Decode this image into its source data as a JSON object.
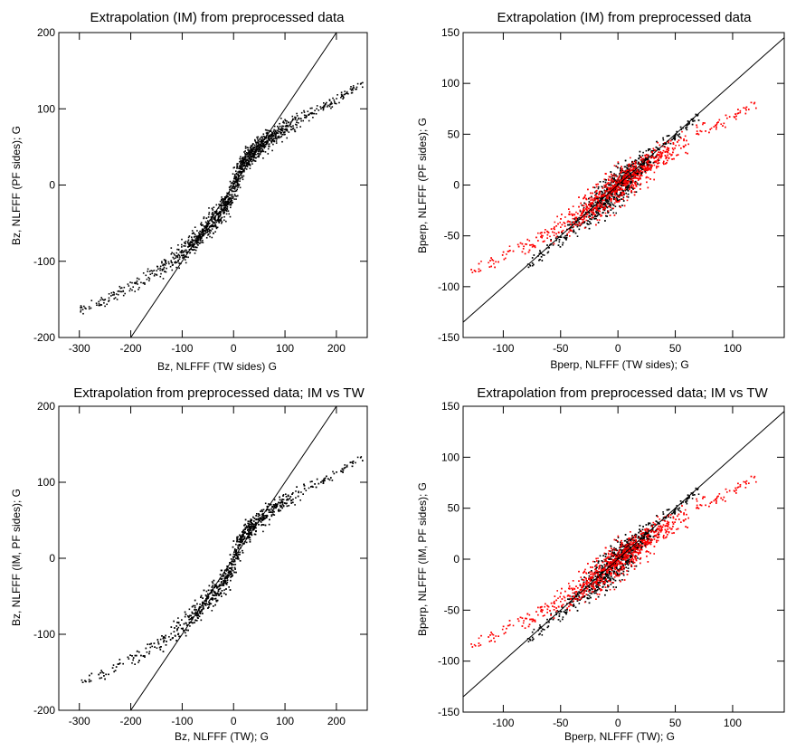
{
  "chart_data": [
    {
      "type": "scatter",
      "title": "Extrapolation (IM) from preprocessed data",
      "xlabel": "Bz, NLFFF (TW sides)  G",
      "ylabel": "Bz, NLFFF (PF sides); G",
      "xlim": [
        -340,
        260
      ],
      "ylim": [
        -200,
        200
      ],
      "xticks": [
        -300,
        -200,
        -100,
        0,
        100,
        200
      ],
      "yticks": [
        -200,
        -100,
        0,
        100,
        200
      ],
      "grid": false,
      "reference_line": {
        "x": [
          -200,
          200
        ],
        "y": [
          -200,
          200
        ]
      },
      "series": [
        {
          "color": "#000000",
          "x": [
            -300,
            -250,
            -200,
            -150,
            -120,
            -100,
            -80,
            -60,
            -40,
            -20,
            -10,
            0,
            10,
            20,
            30,
            40,
            50,
            60,
            80,
            100,
            150,
            200,
            250
          ],
          "y": [
            -162,
            -150,
            -130,
            -112,
            -98,
            -87,
            -75,
            -60,
            -44,
            -30,
            -20,
            0,
            20,
            32,
            40,
            47,
            53,
            58,
            68,
            77,
            95,
            114,
            135
          ],
          "spread": [
            4,
            6,
            8,
            10,
            12,
            13,
            12,
            12,
            13,
            13,
            14,
            18,
            16,
            14,
            13,
            12,
            12,
            12,
            11,
            10,
            8,
            6,
            4
          ]
        }
      ]
    },
    {
      "type": "scatter",
      "title": "Extrapolation (IM) from preprocessed data",
      "xlabel": "Bperp, NLFFF (TW sides); G",
      "ylabel": "Bperp, NLFFF (PF sides); G",
      "xlim": [
        -135,
        145
      ],
      "ylim": [
        -150,
        150
      ],
      "xticks": [
        -100,
        -50,
        0,
        50,
        100
      ],
      "yticks": [
        -150,
        -100,
        -50,
        0,
        50,
        100,
        150
      ],
      "grid": false,
      "reference_line": {
        "x": [
          -135,
          145
        ],
        "y": [
          -135,
          145
        ]
      },
      "series": [
        {
          "color": "#000000",
          "x": [
            -80,
            -70,
            -60,
            -50,
            -40,
            -30,
            -20,
            -10,
            0,
            10,
            20,
            30,
            40,
            50,
            60,
            70
          ],
          "y": [
            -80,
            -70,
            -60,
            -50,
            -40,
            -30,
            -20,
            -10,
            0,
            10,
            20,
            30,
            40,
            50,
            60,
            70
          ],
          "spread": [
            4,
            5,
            6,
            7,
            9,
            11,
            13,
            14,
            15,
            14,
            12,
            10,
            8,
            6,
            5,
            4
          ]
        },
        {
          "color": "#ff0000",
          "x": [
            -130,
            -110,
            -90,
            -70,
            -50,
            -30,
            -10,
            0,
            10,
            30,
            50,
            70,
            90,
            110,
            120
          ],
          "y": [
            -85,
            -75,
            -62,
            -52,
            -40,
            -25,
            -8,
            0,
            8,
            24,
            38,
            52,
            63,
            75,
            82
          ],
          "spread": [
            4,
            5,
            6,
            8,
            10,
            12,
            15,
            16,
            15,
            13,
            11,
            9,
            7,
            5,
            4
          ]
        }
      ]
    },
    {
      "type": "scatter",
      "title": "Extrapolation from preprocessed data; IM vs TW",
      "xlabel": "Bz, NLFFF (TW); G",
      "ylabel": "Bz, NLFFF (IM, PF sides); G",
      "xlim": [
        -340,
        260
      ],
      "ylim": [
        -200,
        200
      ],
      "xticks": [
        -300,
        -200,
        -100,
        0,
        100,
        200
      ],
      "yticks": [
        -200,
        -100,
        0,
        100,
        200
      ],
      "grid": false,
      "reference_line": {
        "x": [
          -200,
          200
        ],
        "y": [
          -200,
          200
        ]
      },
      "series": [
        {
          "color": "#000000",
          "x": [
            -300,
            -250,
            -200,
            -150,
            -120,
            -100,
            -80,
            -60,
            -40,
            -20,
            -10,
            0,
            10,
            20,
            30,
            40,
            50,
            60,
            80,
            100,
            150,
            200,
            250
          ],
          "y": [
            -162,
            -150,
            -130,
            -112,
            -98,
            -87,
            -75,
            -60,
            -44,
            -30,
            -20,
            0,
            20,
            32,
            40,
            47,
            53,
            58,
            68,
            77,
            95,
            114,
            135
          ],
          "spread": [
            4,
            6,
            8,
            10,
            12,
            13,
            12,
            12,
            13,
            13,
            14,
            18,
            16,
            14,
            13,
            12,
            12,
            12,
            11,
            10,
            8,
            6,
            4
          ]
        }
      ]
    },
    {
      "type": "scatter",
      "title": "Extrapolation from preprocessed data; IM vs TW",
      "xlabel": "Bperp, NLFFF (TW); G",
      "ylabel": "Bperp, NLFFF (IM, PF sides); G",
      "xlim": [
        -135,
        145
      ],
      "ylim": [
        -150,
        150
      ],
      "xticks": [
        -100,
        -50,
        0,
        50,
        100
      ],
      "yticks": [
        -150,
        -100,
        -50,
        0,
        50,
        100,
        150
      ],
      "grid": false,
      "reference_line": {
        "x": [
          -135,
          145
        ],
        "y": [
          -135,
          145
        ]
      },
      "series": [
        {
          "color": "#000000",
          "x": [
            -80,
            -70,
            -60,
            -50,
            -40,
            -30,
            -20,
            -10,
            0,
            10,
            20,
            30,
            40,
            50,
            60,
            70
          ],
          "y": [
            -80,
            -70,
            -60,
            -50,
            -40,
            -30,
            -20,
            -10,
            0,
            10,
            20,
            30,
            40,
            50,
            60,
            70
          ],
          "spread": [
            4,
            5,
            6,
            7,
            9,
            11,
            13,
            14,
            15,
            14,
            12,
            10,
            8,
            6,
            5,
            4
          ]
        },
        {
          "color": "#ff0000",
          "x": [
            -130,
            -110,
            -90,
            -70,
            -50,
            -30,
            -10,
            0,
            10,
            30,
            50,
            70,
            90,
            110,
            120
          ],
          "y": [
            -85,
            -75,
            -62,
            -52,
            -40,
            -25,
            -8,
            0,
            8,
            24,
            38,
            52,
            63,
            75,
            82
          ],
          "spread": [
            4,
            5,
            6,
            8,
            10,
            12,
            15,
            16,
            15,
            13,
            11,
            9,
            7,
            5,
            4
          ]
        }
      ]
    }
  ]
}
